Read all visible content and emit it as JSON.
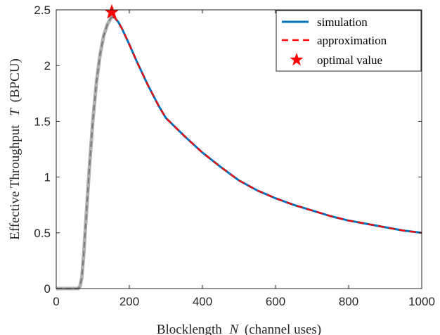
{
  "chart_data": {
    "type": "line",
    "title": "",
    "xlabel_prefix": "Blocklength",
    "xlabel_symbol": "N",
    "xlabel_suffix": "(channel uses)",
    "ylabel_prefix": "Effective Throughput",
    "ylabel_symbol": "T",
    "ylabel_suffix": "(BPCU)",
    "xlim": [
      0,
      1000
    ],
    "ylim": [
      0,
      2.5
    ],
    "xticks": [
      0,
      200,
      400,
      600,
      800,
      1000
    ],
    "yticks": [
      0,
      0.5,
      1,
      1.5,
      2,
      2.5
    ],
    "xtick_labels": [
      "0",
      "200",
      "400",
      "600",
      "800",
      "1000"
    ],
    "ytick_labels": [
      "0",
      "0.5",
      "1",
      "1.5",
      "2",
      "2.5"
    ],
    "grid": false,
    "legend_position": "top-right",
    "colors": {
      "simulation": "#0072BD",
      "approximation": "#FF0000",
      "optimal": "#FF0000",
      "infeasible_region": "#B0B0B0",
      "infeasible_dash": "#7A7A7A"
    },
    "series": [
      {
        "name": "simulation",
        "style": "solid",
        "x": [
          155,
          160,
          170,
          180,
          190,
          200,
          220,
          250,
          280,
          300,
          350,
          400,
          450,
          500,
          550,
          600,
          650,
          700,
          750,
          800,
          850,
          900,
          950,
          1000
        ],
        "y": [
          2.44,
          2.43,
          2.39,
          2.33,
          2.26,
          2.19,
          2.04,
          1.83,
          1.64,
          1.53,
          1.37,
          1.22,
          1.09,
          0.97,
          0.88,
          0.81,
          0.75,
          0.7,
          0.65,
          0.61,
          0.58,
          0.55,
          0.52,
          0.5
        ]
      },
      {
        "name": "approximation",
        "style": "dashed",
        "x": [
          155,
          160,
          170,
          180,
          190,
          200,
          220,
          250,
          280,
          300,
          350,
          400,
          450,
          500,
          550,
          600,
          650,
          700,
          750,
          800,
          850,
          900,
          950,
          1000
        ],
        "y": [
          2.44,
          2.43,
          2.39,
          2.33,
          2.26,
          2.19,
          2.04,
          1.83,
          1.64,
          1.53,
          1.37,
          1.22,
          1.09,
          0.97,
          0.88,
          0.81,
          0.75,
          0.7,
          0.65,
          0.61,
          0.58,
          0.55,
          0.52,
          0.5
        ]
      },
      {
        "name": "",
        "style": "gray",
        "x": [
          0,
          50,
          60,
          65,
          70,
          75,
          80,
          90,
          100,
          110,
          120,
          130,
          140,
          150,
          155
        ],
        "y": [
          0,
          0,
          0,
          0.02,
          0.1,
          0.3,
          0.55,
          1.05,
          1.5,
          1.85,
          2.1,
          2.27,
          2.37,
          2.43,
          2.44
        ]
      }
    ],
    "optimal_point": {
      "name": "optimal value",
      "x": 152,
      "y": 2.48
    },
    "legend": [
      {
        "label": "simulation",
        "style": "solid"
      },
      {
        "label": "approximation",
        "style": "dashed"
      },
      {
        "label": "optimal value",
        "style": "star"
      }
    ]
  }
}
